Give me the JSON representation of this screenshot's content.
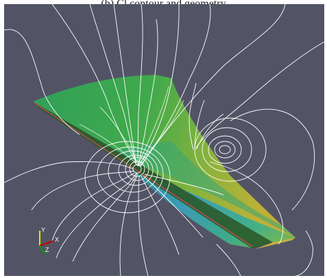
{
  "caption": "(b) Cl contour and geometry",
  "axes_triad": {
    "y_label": "Y",
    "x_label": "X",
    "z_label": "Z"
  },
  "colors": {
    "background": "#525466",
    "contour_lines": "#ffffff",
    "axis_y": "#e6e600",
    "axis_x": "#c00000",
    "axis_z": "#00a000"
  },
  "scene": {
    "object": "swept wing surface",
    "style": "shaded geometry with white iso-contour lines"
  }
}
